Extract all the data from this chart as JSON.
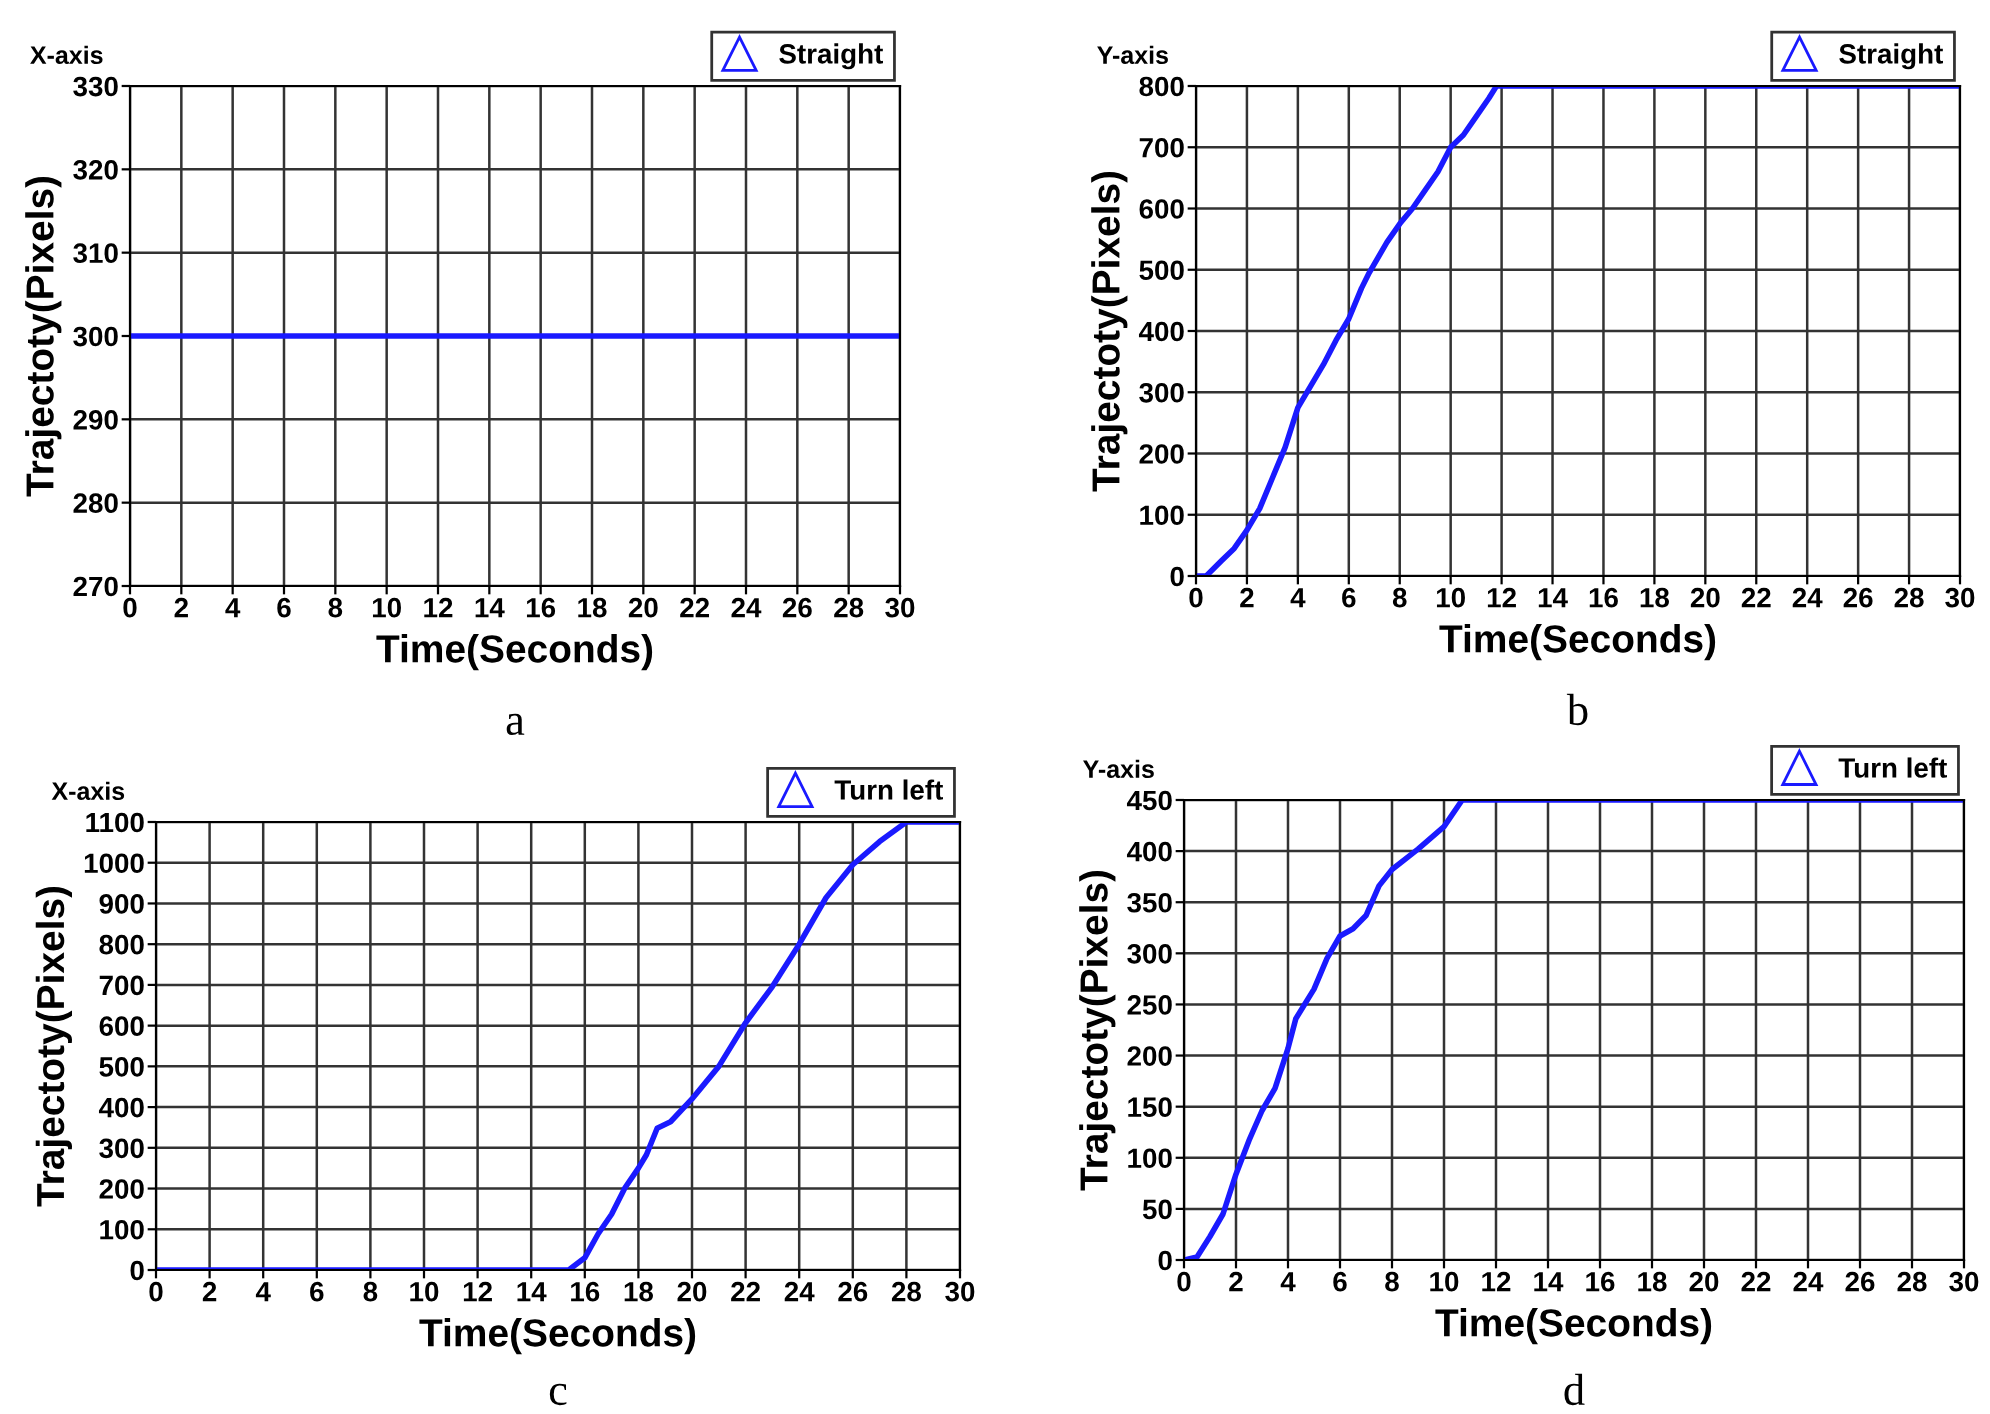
{
  "chart_data": [
    {
      "type": "line",
      "title": "X-axis",
      "xlabel": "Time(Seconds)",
      "ylabel": "Trajectoty(Pixels)",
      "annotations": [
        "a"
      ],
      "xlim": [
        0,
        30
      ],
      "ylim": [
        270,
        330
      ],
      "xticks": [
        0,
        2,
        4,
        6,
        8,
        10,
        12,
        14,
        16,
        18,
        20,
        22,
        24,
        26,
        28,
        30
      ],
      "yticks": [
        270,
        280,
        290,
        300,
        310,
        320,
        330
      ],
      "grid": true,
      "legend": "top right",
      "series": [
        {
          "name": "Straight",
          "color": "#1a1aff",
          "x": [
            0,
            30
          ],
          "values": [
            300,
            300
          ]
        }
      ]
    },
    {
      "type": "line",
      "title": "Y-axis",
      "xlabel": "Time(Seconds)",
      "ylabel": "Trajectoty(Pixels)",
      "annotations": [
        "b"
      ],
      "xlim": [
        0,
        30
      ],
      "ylim": [
        0,
        800
      ],
      "xticks": [
        0,
        2,
        4,
        6,
        8,
        10,
        12,
        14,
        16,
        18,
        20,
        22,
        24,
        26,
        28,
        30
      ],
      "yticks": [
        0,
        100,
        200,
        300,
        400,
        500,
        600,
        700,
        800
      ],
      "grid": true,
      "legend": "top right",
      "series": [
        {
          "name": "Straight",
          "color": "#1a1aff",
          "x": [
            0,
            0.4,
            1,
            1.5,
            2,
            2.5,
            3,
            3.5,
            4,
            4.5,
            5,
            5.5,
            6,
            6.5,
            6.8,
            7.5,
            8,
            8.5,
            9,
            9.5,
            10,
            10.5,
            11,
            11.5,
            11.8,
            30
          ],
          "values": [
            0,
            0,
            25,
            45,
            75,
            110,
            160,
            210,
            275,
            310,
            345,
            385,
            420,
            470,
            495,
            545,
            575,
            600,
            630,
            660,
            700,
            720,
            750,
            780,
            800,
            800
          ]
        }
      ]
    },
    {
      "type": "line",
      "title": "X-axis",
      "xlabel": "Time(Seconds)",
      "ylabel": "Trajectoty(Pixels)",
      "annotations": [
        "c"
      ],
      "xlim": [
        0,
        30
      ],
      "ylim": [
        0,
        1100
      ],
      "xticks": [
        0,
        2,
        4,
        6,
        8,
        10,
        12,
        14,
        16,
        18,
        20,
        22,
        24,
        26,
        28,
        30
      ],
      "yticks": [
        0,
        100,
        200,
        300,
        400,
        500,
        600,
        700,
        800,
        900,
        1000,
        1100
      ],
      "grid": true,
      "legend": "top right",
      "series": [
        {
          "name": "Turn left",
          "color": "#1a1aff",
          "x": [
            0,
            15.4,
            16,
            16.5,
            17,
            17.5,
            18,
            18.3,
            18.7,
            19.2,
            20,
            21,
            22,
            23,
            24,
            25,
            26,
            27,
            28,
            30
          ],
          "values": [
            0,
            0,
            30,
            89,
            137,
            202,
            250,
            283,
            348,
            364,
            420,
            500,
            607,
            696,
            800,
            914,
            995,
            1052,
            1100,
            1100
          ]
        }
      ]
    },
    {
      "type": "line",
      "title": "Y-axis",
      "xlabel": "Time(Seconds)",
      "ylabel": "Trajectoty(Pixels)",
      "annotations": [
        "d"
      ],
      "xlim": [
        0,
        30
      ],
      "ylim": [
        0,
        450
      ],
      "xticks": [
        0,
        2,
        4,
        6,
        8,
        10,
        12,
        14,
        16,
        18,
        20,
        22,
        24,
        26,
        28,
        30
      ],
      "yticks": [
        0,
        50,
        100,
        150,
        200,
        250,
        300,
        350,
        400,
        450
      ],
      "grid": true,
      "legend": "top right",
      "series": [
        {
          "name": "Turn left",
          "color": "#1a1aff",
          "x": [
            0,
            0.5,
            1,
            1.5,
            2,
            2.5,
            3,
            3.5,
            4,
            4.3,
            5,
            5.5,
            6,
            6.5,
            7,
            7.5,
            8,
            9,
            10,
            10.7,
            30
          ],
          "values": [
            0,
            3,
            23,
            45,
            84,
            117,
            146,
            168,
            207,
            236,
            265,
            295,
            317,
            324,
            337,
            366,
            382,
            402,
            424,
            450,
            450
          ]
        }
      ]
    }
  ]
}
